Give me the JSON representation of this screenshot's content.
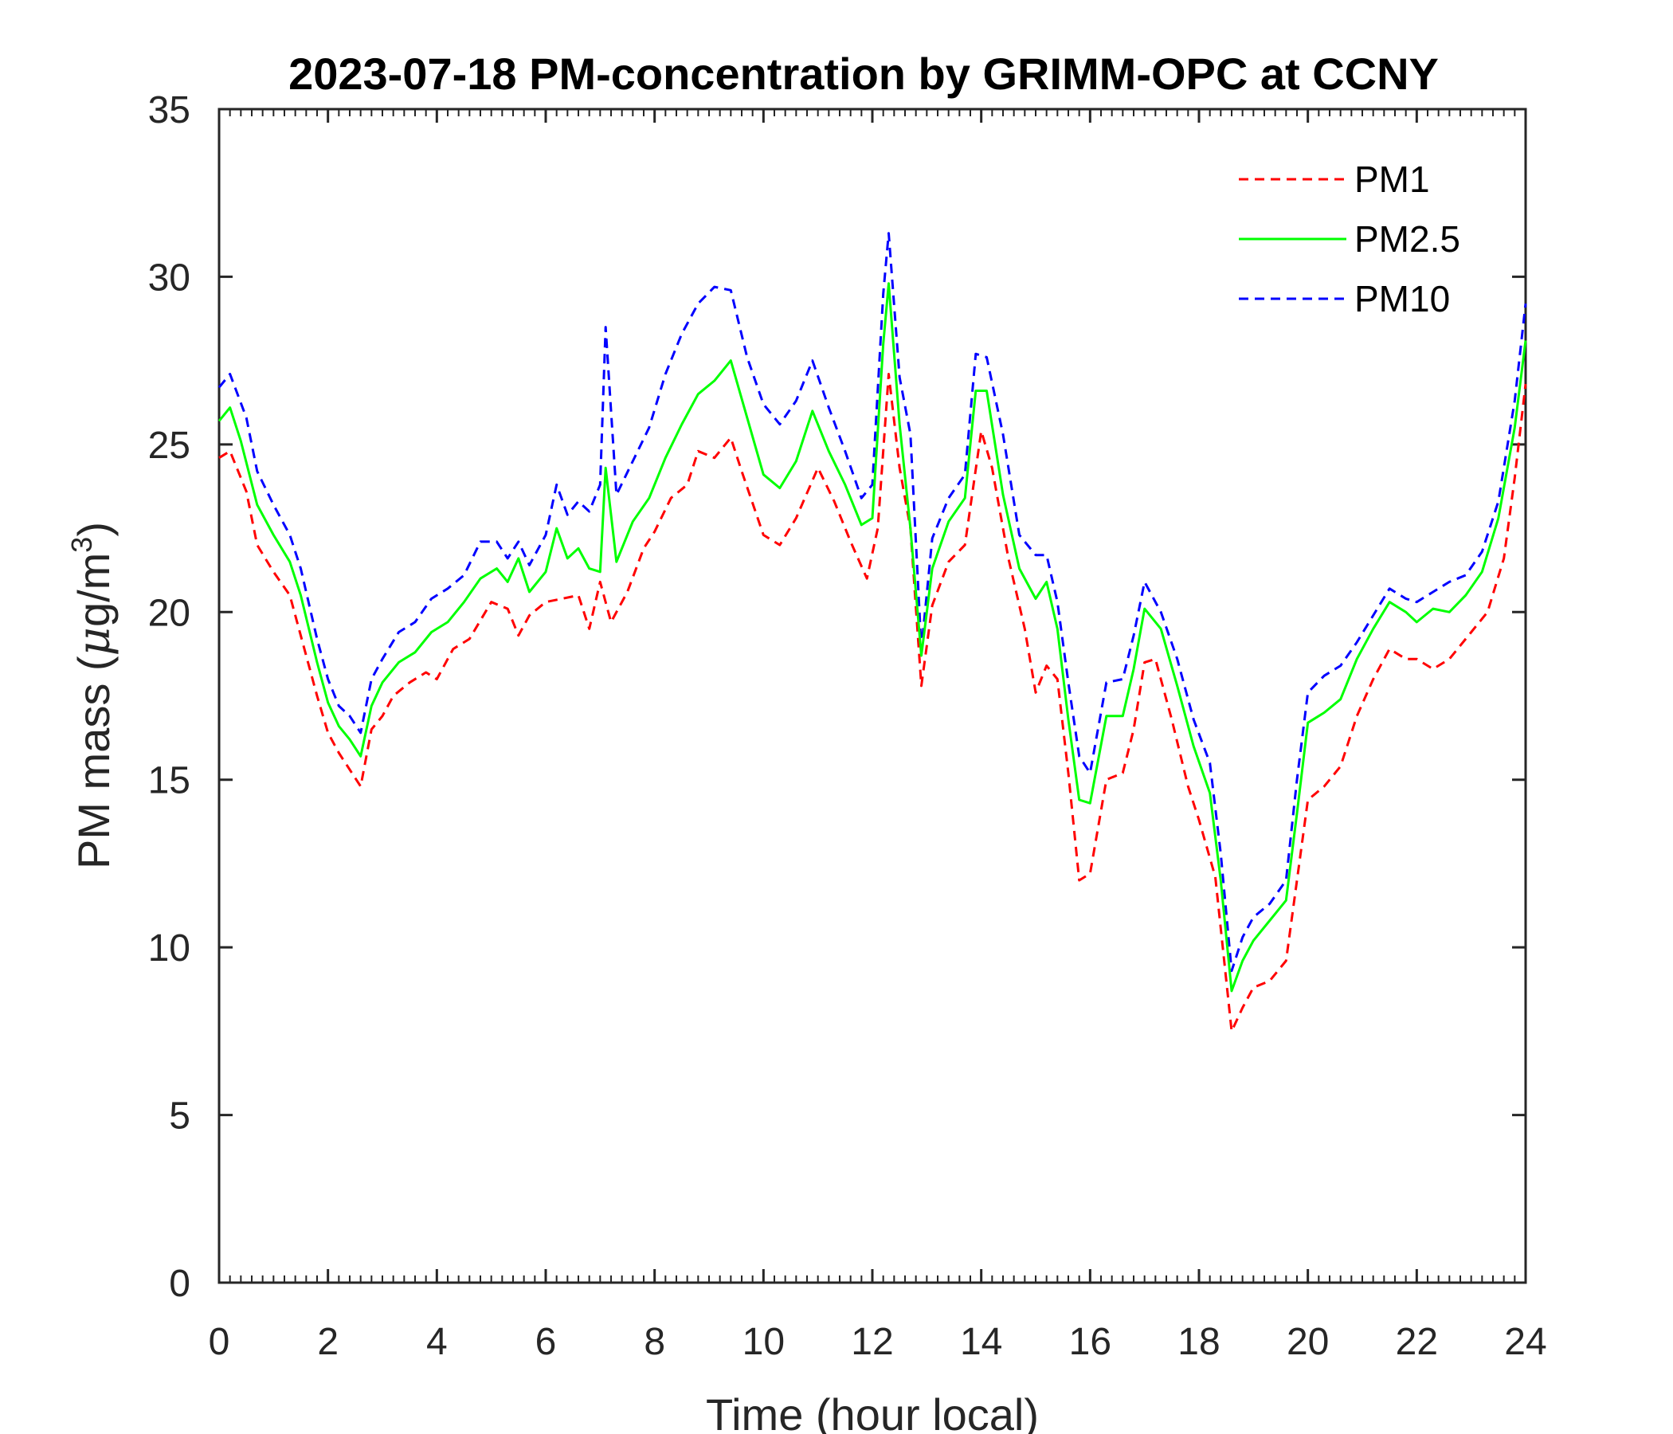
{
  "chart_data": {
    "type": "line",
    "title": "2023-07-18 PM-concentration by GRIMM-OPC at CCNY",
    "xlabel": "Time (hour local)",
    "ylabel": "PM mass (",
    "ylabel_mu": "μ",
    "ylabel_unit": "g/m",
    "ylabel_sup": "3",
    "ylabel_close": ")",
    "xlim": [
      0,
      24
    ],
    "ylim": [
      0,
      35
    ],
    "x_ticks": [
      "0",
      "2",
      "4",
      "6",
      "8",
      "10",
      "12",
      "14",
      "16",
      "18",
      "20",
      "22",
      "24"
    ],
    "y_ticks": [
      "0",
      "5",
      "10",
      "15",
      "20",
      "25",
      "30",
      "35"
    ],
    "grid": false,
    "legend_position": "top-right",
    "series": [
      {
        "name": "PM1",
        "color": "#ff0000",
        "dash": "dashed",
        "points": [
          [
            0.0,
            24.6
          ],
          [
            0.2,
            24.8
          ],
          [
            0.5,
            23.6
          ],
          [
            0.7,
            22.0
          ],
          [
            1.0,
            21.2
          ],
          [
            1.3,
            20.5
          ],
          [
            1.5,
            19.3
          ],
          [
            1.8,
            17.5
          ],
          [
            2.0,
            16.4
          ],
          [
            2.2,
            15.8
          ],
          [
            2.4,
            15.3
          ],
          [
            2.6,
            14.8
          ],
          [
            2.8,
            16.5
          ],
          [
            3.0,
            16.9
          ],
          [
            3.2,
            17.5
          ],
          [
            3.5,
            17.9
          ],
          [
            3.8,
            18.2
          ],
          [
            4.0,
            18.0
          ],
          [
            4.3,
            18.9
          ],
          [
            4.6,
            19.2
          ],
          [
            5.0,
            20.3
          ],
          [
            5.3,
            20.1
          ],
          [
            5.5,
            19.3
          ],
          [
            5.7,
            19.9
          ],
          [
            6.0,
            20.3
          ],
          [
            6.3,
            20.4
          ],
          [
            6.6,
            20.5
          ],
          [
            6.8,
            19.5
          ],
          [
            7.0,
            20.9
          ],
          [
            7.2,
            19.7
          ],
          [
            7.5,
            20.6
          ],
          [
            7.8,
            21.9
          ],
          [
            8.0,
            22.4
          ],
          [
            8.3,
            23.4
          ],
          [
            8.6,
            23.8
          ],
          [
            8.8,
            24.8
          ],
          [
            9.1,
            24.6
          ],
          [
            9.4,
            25.2
          ],
          [
            9.6,
            24.2
          ],
          [
            10.0,
            22.3
          ],
          [
            10.3,
            22.0
          ],
          [
            10.6,
            22.8
          ],
          [
            11.0,
            24.3
          ],
          [
            11.3,
            23.3
          ],
          [
            11.6,
            22.1
          ],
          [
            11.9,
            21.0
          ],
          [
            12.1,
            22.5
          ],
          [
            12.3,
            27.1
          ],
          [
            12.5,
            24.3
          ],
          [
            12.7,
            22.5
          ],
          [
            12.9,
            17.8
          ],
          [
            13.1,
            20.2
          ],
          [
            13.4,
            21.5
          ],
          [
            13.7,
            22.0
          ],
          [
            14.0,
            25.4
          ],
          [
            14.2,
            24.3
          ],
          [
            14.5,
            21.6
          ],
          [
            14.8,
            19.5
          ],
          [
            15.0,
            17.6
          ],
          [
            15.2,
            18.4
          ],
          [
            15.4,
            18.0
          ],
          [
            15.6,
            15.2
          ],
          [
            15.8,
            12.0
          ],
          [
            16.0,
            12.2
          ],
          [
            16.3,
            15.0
          ],
          [
            16.6,
            15.2
          ],
          [
            16.8,
            16.5
          ],
          [
            17.0,
            18.5
          ],
          [
            17.2,
            18.6
          ],
          [
            17.5,
            16.8
          ],
          [
            17.8,
            14.8
          ],
          [
            18.0,
            13.8
          ],
          [
            18.3,
            12.1
          ],
          [
            18.6,
            7.5
          ],
          [
            18.8,
            8.2
          ],
          [
            19.0,
            8.8
          ],
          [
            19.3,
            9.0
          ],
          [
            19.6,
            9.6
          ],
          [
            19.8,
            12.0
          ],
          [
            20.0,
            14.4
          ],
          [
            20.3,
            14.8
          ],
          [
            20.6,
            15.4
          ],
          [
            20.9,
            16.9
          ],
          [
            21.2,
            18.0
          ],
          [
            21.5,
            18.9
          ],
          [
            21.8,
            18.6
          ],
          [
            22.0,
            18.6
          ],
          [
            22.3,
            18.3
          ],
          [
            22.6,
            18.6
          ],
          [
            23.0,
            19.4
          ],
          [
            23.3,
            20.0
          ],
          [
            23.6,
            21.6
          ],
          [
            23.8,
            24.0
          ],
          [
            24.0,
            26.8
          ]
        ]
      },
      {
        "name": "PM2.5",
        "color": "#00ff00",
        "dash": "solid",
        "points": [
          [
            0.0,
            25.7
          ],
          [
            0.2,
            26.1
          ],
          [
            0.4,
            25.1
          ],
          [
            0.7,
            23.2
          ],
          [
            1.0,
            22.3
          ],
          [
            1.3,
            21.5
          ],
          [
            1.5,
            20.5
          ],
          [
            1.8,
            18.5
          ],
          [
            2.0,
            17.3
          ],
          [
            2.2,
            16.6
          ],
          [
            2.4,
            16.2
          ],
          [
            2.6,
            15.7
          ],
          [
            2.8,
            17.2
          ],
          [
            3.0,
            17.9
          ],
          [
            3.3,
            18.5
          ],
          [
            3.6,
            18.8
          ],
          [
            3.9,
            19.4
          ],
          [
            4.2,
            19.7
          ],
          [
            4.5,
            20.3
          ],
          [
            4.8,
            21.0
          ],
          [
            5.1,
            21.3
          ],
          [
            5.3,
            20.9
          ],
          [
            5.5,
            21.6
          ],
          [
            5.7,
            20.6
          ],
          [
            6.0,
            21.2
          ],
          [
            6.2,
            22.5
          ],
          [
            6.4,
            21.6
          ],
          [
            6.6,
            21.9
          ],
          [
            6.8,
            21.3
          ],
          [
            7.0,
            21.2
          ],
          [
            7.1,
            24.3
          ],
          [
            7.3,
            21.5
          ],
          [
            7.6,
            22.7
          ],
          [
            7.9,
            23.4
          ],
          [
            8.2,
            24.6
          ],
          [
            8.5,
            25.6
          ],
          [
            8.8,
            26.5
          ],
          [
            9.1,
            26.9
          ],
          [
            9.4,
            27.5
          ],
          [
            9.7,
            25.8
          ],
          [
            10.0,
            24.1
          ],
          [
            10.3,
            23.7
          ],
          [
            10.6,
            24.5
          ],
          [
            10.9,
            26.0
          ],
          [
            11.2,
            24.8
          ],
          [
            11.5,
            23.8
          ],
          [
            11.8,
            22.6
          ],
          [
            12.0,
            22.8
          ],
          [
            12.2,
            28.0
          ],
          [
            12.3,
            29.8
          ],
          [
            12.5,
            25.6
          ],
          [
            12.7,
            22.5
          ],
          [
            12.9,
            18.7
          ],
          [
            13.1,
            21.3
          ],
          [
            13.4,
            22.7
          ],
          [
            13.7,
            23.4
          ],
          [
            13.9,
            26.6
          ],
          [
            14.1,
            26.6
          ],
          [
            14.4,
            23.5
          ],
          [
            14.7,
            21.3
          ],
          [
            15.0,
            20.4
          ],
          [
            15.2,
            20.9
          ],
          [
            15.4,
            19.5
          ],
          [
            15.6,
            16.8
          ],
          [
            15.8,
            14.4
          ],
          [
            16.0,
            14.3
          ],
          [
            16.3,
            16.9
          ],
          [
            16.6,
            16.9
          ],
          [
            16.8,
            18.3
          ],
          [
            17.0,
            20.1
          ],
          [
            17.3,
            19.5
          ],
          [
            17.6,
            17.8
          ],
          [
            17.9,
            16.0
          ],
          [
            18.2,
            14.6
          ],
          [
            18.4,
            12.0
          ],
          [
            18.6,
            8.7
          ],
          [
            18.8,
            9.6
          ],
          [
            19.0,
            10.2
          ],
          [
            19.3,
            10.8
          ],
          [
            19.6,
            11.4
          ],
          [
            19.8,
            14.0
          ],
          [
            20.0,
            16.7
          ],
          [
            20.3,
            17.0
          ],
          [
            20.6,
            17.4
          ],
          [
            20.9,
            18.6
          ],
          [
            21.2,
            19.5
          ],
          [
            21.5,
            20.3
          ],
          [
            21.8,
            20.0
          ],
          [
            22.0,
            19.7
          ],
          [
            22.3,
            20.1
          ],
          [
            22.6,
            20.0
          ],
          [
            22.9,
            20.5
          ],
          [
            23.2,
            21.2
          ],
          [
            23.5,
            22.8
          ],
          [
            23.8,
            25.5
          ],
          [
            24.0,
            28.1
          ]
        ]
      },
      {
        "name": "PM10",
        "color": "#0000ff",
        "dash": "dashed",
        "points": [
          [
            0.0,
            26.7
          ],
          [
            0.2,
            27.1
          ],
          [
            0.5,
            25.8
          ],
          [
            0.7,
            24.2
          ],
          [
            1.0,
            23.2
          ],
          [
            1.3,
            22.3
          ],
          [
            1.5,
            21.3
          ],
          [
            1.8,
            19.2
          ],
          [
            2.0,
            18.0
          ],
          [
            2.2,
            17.2
          ],
          [
            2.4,
            16.9
          ],
          [
            2.6,
            16.4
          ],
          [
            2.8,
            18.0
          ],
          [
            3.0,
            18.6
          ],
          [
            3.3,
            19.4
          ],
          [
            3.6,
            19.7
          ],
          [
            3.9,
            20.4
          ],
          [
            4.2,
            20.7
          ],
          [
            4.5,
            21.1
          ],
          [
            4.8,
            22.1
          ],
          [
            5.1,
            22.1
          ],
          [
            5.3,
            21.6
          ],
          [
            5.5,
            22.1
          ],
          [
            5.7,
            21.4
          ],
          [
            6.0,
            22.3
          ],
          [
            6.2,
            23.8
          ],
          [
            6.4,
            22.9
          ],
          [
            6.6,
            23.3
          ],
          [
            6.8,
            23.0
          ],
          [
            7.0,
            23.8
          ],
          [
            7.1,
            28.5
          ],
          [
            7.3,
            23.5
          ],
          [
            7.6,
            24.5
          ],
          [
            7.9,
            25.5
          ],
          [
            8.2,
            27.1
          ],
          [
            8.5,
            28.3
          ],
          [
            8.8,
            29.2
          ],
          [
            9.1,
            29.7
          ],
          [
            9.4,
            29.6
          ],
          [
            9.7,
            27.6
          ],
          [
            10.0,
            26.2
          ],
          [
            10.3,
            25.6
          ],
          [
            10.6,
            26.3
          ],
          [
            10.9,
            27.5
          ],
          [
            11.2,
            26.1
          ],
          [
            11.5,
            24.8
          ],
          [
            11.8,
            23.4
          ],
          [
            12.0,
            23.8
          ],
          [
            12.2,
            29.5
          ],
          [
            12.3,
            31.3
          ],
          [
            12.5,
            27.0
          ],
          [
            12.7,
            25.3
          ],
          [
            12.9,
            18.9
          ],
          [
            13.1,
            22.2
          ],
          [
            13.4,
            23.4
          ],
          [
            13.7,
            24.1
          ],
          [
            13.9,
            27.7
          ],
          [
            14.1,
            27.6
          ],
          [
            14.4,
            25.3
          ],
          [
            14.7,
            22.3
          ],
          [
            15.0,
            21.7
          ],
          [
            15.2,
            21.7
          ],
          [
            15.4,
            20.3
          ],
          [
            15.6,
            17.9
          ],
          [
            15.8,
            15.7
          ],
          [
            16.0,
            15.2
          ],
          [
            16.3,
            17.9
          ],
          [
            16.6,
            18.0
          ],
          [
            16.8,
            19.3
          ],
          [
            17.0,
            20.9
          ],
          [
            17.3,
            20.0
          ],
          [
            17.6,
            18.6
          ],
          [
            17.9,
            16.8
          ],
          [
            18.2,
            15.5
          ],
          [
            18.4,
            12.8
          ],
          [
            18.6,
            9.3
          ],
          [
            18.8,
            10.3
          ],
          [
            19.0,
            10.9
          ],
          [
            19.3,
            11.3
          ],
          [
            19.6,
            12.0
          ],
          [
            19.8,
            15.0
          ],
          [
            20.0,
            17.6
          ],
          [
            20.3,
            18.1
          ],
          [
            20.6,
            18.4
          ],
          [
            20.9,
            19.1
          ],
          [
            21.2,
            19.9
          ],
          [
            21.5,
            20.7
          ],
          [
            21.8,
            20.4
          ],
          [
            22.0,
            20.3
          ],
          [
            22.3,
            20.6
          ],
          [
            22.6,
            20.9
          ],
          [
            22.9,
            21.1
          ],
          [
            23.2,
            21.8
          ],
          [
            23.5,
            23.3
          ],
          [
            23.8,
            26.3
          ],
          [
            24.0,
            29.2
          ]
        ]
      }
    ]
  }
}
